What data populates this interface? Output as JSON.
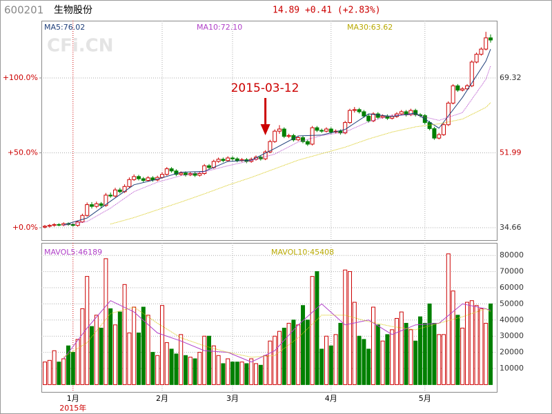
{
  "header": {
    "code": "600201",
    "name": "生物股份",
    "quote": "14.89 +0.41 (+2.83%)"
  },
  "chart_data": [
    {
      "type": "candlestick",
      "watermark": "CFi.CN",
      "annotation": "2015-03-12",
      "year_label": "2015年",
      "grid": true,
      "categories": [
        null,
        null,
        null,
        null,
        null,
        null,
        "1月",
        null,
        null,
        null,
        null,
        null,
        null,
        null,
        null,
        null,
        null,
        null,
        null,
        null,
        null,
        null,
        null,
        null,
        null,
        "2月",
        null,
        null,
        null,
        null,
        null,
        null,
        null,
        null,
        null,
        null,
        null,
        null,
        null,
        null,
        "3月",
        null,
        null,
        null,
        null,
        null,
        null,
        null,
        null,
        null,
        null,
        null,
        null,
        null,
        null,
        null,
        null,
        null,
        null,
        null,
        null,
        "4月",
        null,
        null,
        null,
        null,
        null,
        null,
        null,
        null,
        null,
        null,
        null,
        null,
        null,
        null,
        null,
        null,
        null,
        null,
        null,
        "5月",
        null,
        null,
        null,
        null,
        null,
        null,
        null,
        null,
        null,
        null,
        null,
        null,
        null,
        null
      ],
      "colors": {
        "up": "#cc0000",
        "down": "#008000"
      },
      "ohlc": [
        [
          34.8,
          35.3,
          34.5,
          35.0
        ],
        [
          35.0,
          35.5,
          34.7,
          35.2
        ],
        [
          35.2,
          35.7,
          34.9,
          35.4
        ],
        [
          35.4,
          35.7,
          35.0,
          35.3
        ],
        [
          35.3,
          35.9,
          35.0,
          35.6
        ],
        [
          35.6,
          35.9,
          35.1,
          35.4
        ],
        [
          35.4,
          35.7,
          34.9,
          35.2
        ],
        [
          35.2,
          36.3,
          34.9,
          36.0
        ],
        [
          36.0,
          37.9,
          35.8,
          37.5
        ],
        [
          37.5,
          40.5,
          37.2,
          40.0
        ],
        [
          40.0,
          40.6,
          39.1,
          39.6
        ],
        [
          39.6,
          40.7,
          39.2,
          40.2
        ],
        [
          40.2,
          40.6,
          39.3,
          39.8
        ],
        [
          39.8,
          42.7,
          39.5,
          42.2
        ],
        [
          42.2,
          42.8,
          41.6,
          42.0
        ],
        [
          42.0,
          43.9,
          41.7,
          43.4
        ],
        [
          43.4,
          43.9,
          42.6,
          43.0
        ],
        [
          43.0,
          44.7,
          42.7,
          44.2
        ],
        [
          44.2,
          46.3,
          43.9,
          45.8
        ],
        [
          45.8,
          47.0,
          45.5,
          46.5
        ],
        [
          46.5,
          46.9,
          45.6,
          46.0
        ],
        [
          46.0,
          46.4,
          45.2,
          45.6
        ],
        [
          45.6,
          46.6,
          45.3,
          46.2
        ],
        [
          46.2,
          46.6,
          45.3,
          45.7
        ],
        [
          45.7,
          46.7,
          45.4,
          46.3
        ],
        [
          46.3,
          47.5,
          46.0,
          47.0
        ],
        [
          47.0,
          48.7,
          46.7,
          48.3
        ],
        [
          48.3,
          48.7,
          47.4,
          47.8
        ],
        [
          47.8,
          48.2,
          46.6,
          47.0
        ],
        [
          47.0,
          47.7,
          46.7,
          47.3
        ],
        [
          47.3,
          47.7,
          46.5,
          46.9
        ],
        [
          46.9,
          47.6,
          46.6,
          47.2
        ],
        [
          47.2,
          47.6,
          46.4,
          46.8
        ],
        [
          46.8,
          47.6,
          46.5,
          47.2
        ],
        [
          47.2,
          49.4,
          46.9,
          49.0
        ],
        [
          49.0,
          49.4,
          48.2,
          48.6
        ],
        [
          48.6,
          50.4,
          48.3,
          50.0
        ],
        [
          50.0,
          50.9,
          49.7,
          50.5
        ],
        [
          50.5,
          50.9,
          49.8,
          50.2
        ],
        [
          50.2,
          51.2,
          49.9,
          50.8
        ],
        [
          50.8,
          51.2,
          50.2,
          50.6
        ],
        [
          50.6,
          51.0,
          49.8,
          50.2
        ],
        [
          50.2,
          50.8,
          49.9,
          50.4
        ],
        [
          50.4,
          50.8,
          49.6,
          50.0
        ],
        [
          50.0,
          50.9,
          49.7,
          50.5
        ],
        [
          50.5,
          51.4,
          50.2,
          51.0
        ],
        [
          51.0,
          51.4,
          50.2,
          50.6
        ],
        [
          50.6,
          52.6,
          50.3,
          52.2
        ],
        [
          52.2,
          55.0,
          51.9,
          54.6
        ],
        [
          54.6,
          57.4,
          54.3,
          57.0
        ],
        [
          57.0,
          58.4,
          56.4,
          57.5
        ],
        [
          57.5,
          57.9,
          55.4,
          55.8
        ],
        [
          55.8,
          56.4,
          55.4,
          56.0
        ],
        [
          56.0,
          56.4,
          54.6,
          55.0
        ],
        [
          55.0,
          55.9,
          54.7,
          55.5
        ],
        [
          55.5,
          55.9,
          54.2,
          54.6
        ],
        [
          54.6,
          55.0,
          53.6,
          54.0
        ],
        [
          54.0,
          58.2,
          53.7,
          57.8
        ],
        [
          57.8,
          58.2,
          56.8,
          57.2
        ],
        [
          57.2,
          57.6,
          56.6,
          57.0
        ],
        [
          57.0,
          57.9,
          56.7,
          57.5
        ],
        [
          57.5,
          57.9,
          56.4,
          56.8
        ],
        [
          56.8,
          57.4,
          56.5,
          57.0
        ],
        [
          57.0,
          57.4,
          56.2,
          56.6
        ],
        [
          56.6,
          59.4,
          56.3,
          59.0
        ],
        [
          59.0,
          62.2,
          58.7,
          61.8
        ],
        [
          61.8,
          62.6,
          61.3,
          62.0
        ],
        [
          62.0,
          62.4,
          61.1,
          61.5
        ],
        [
          61.5,
          61.9,
          60.1,
          60.5
        ],
        [
          60.5,
          60.9,
          59.0,
          59.4
        ],
        [
          59.4,
          61.4,
          59.1,
          61.0
        ],
        [
          61.0,
          61.4,
          59.8,
          60.2
        ],
        [
          60.2,
          60.9,
          59.9,
          60.5
        ],
        [
          60.5,
          60.9,
          59.6,
          60.0
        ],
        [
          60.0,
          60.8,
          59.7,
          60.4
        ],
        [
          60.4,
          61.4,
          60.1,
          61.0
        ],
        [
          61.0,
          61.9,
          60.7,
          61.5
        ],
        [
          61.5,
          61.9,
          60.4,
          60.8
        ],
        [
          60.8,
          62.2,
          60.5,
          61.8
        ],
        [
          61.8,
          62.2,
          60.4,
          60.8
        ],
        [
          60.8,
          61.2,
          60.2,
          60.6
        ],
        [
          60.6,
          61.0,
          58.6,
          59.0
        ],
        [
          59.0,
          59.4,
          57.2,
          57.6
        ],
        [
          57.6,
          58.0,
          55.0,
          55.4
        ],
        [
          55.4,
          56.6,
          55.1,
          56.2
        ],
        [
          56.2,
          58.9,
          55.9,
          58.5
        ],
        [
          58.5,
          63.9,
          58.2,
          63.5
        ],
        [
          63.5,
          67.9,
          63.2,
          67.5
        ],
        [
          67.5,
          67.9,
          66.1,
          66.5
        ],
        [
          66.5,
          67.2,
          66.2,
          66.8
        ],
        [
          66.8,
          67.9,
          66.5,
          67.5
        ],
        [
          67.5,
          73.4,
          67.2,
          73.0
        ],
        [
          73.0,
          75.2,
          72.7,
          74.8
        ],
        [
          74.8,
          76.4,
          74.5,
          76.0
        ],
        [
          76.0,
          80.0,
          75.7,
          78.6
        ],
        [
          78.6,
          79.4,
          77.5,
          78.1
        ]
      ],
      "ylim": [
        31.79,
        82.57
      ],
      "yticks": [
        34.66,
        51.99,
        69.32
      ],
      "yticks_left": [
        {
          "value": 34.66,
          "label": "+0.0%"
        },
        {
          "value": 51.99,
          "label": "+50.0%"
        },
        {
          "value": 69.32,
          "label": "+100.0%"
        }
      ],
      "series": [
        {
          "name": "MA5:76.02",
          "color": "#1f3f7a",
          "x": [
            4,
            9,
            14,
            19,
            24,
            29,
            34,
            39,
            44,
            49,
            54,
            59,
            64,
            69,
            74,
            79,
            84,
            89,
            94,
            95
          ],
          "values": [
            35.3,
            36.9,
            40.8,
            44.6,
            45.9,
            47.5,
            47.7,
            50.0,
            50.3,
            53.0,
            55.9,
            56.1,
            57.4,
            61.0,
            60.4,
            61.2,
            57.7,
            64.8,
            73.2,
            76.0
          ]
        },
        {
          "name": "MA10:72.10",
          "color": "#b040c8",
          "x": [
            4,
            9,
            14,
            19,
            24,
            29,
            34,
            39,
            44,
            49,
            54,
            59,
            64,
            69,
            74,
            79,
            84,
            89,
            94,
            95
          ],
          "values": [
            35.2,
            36.1,
            39.2,
            43.0,
            45.2,
            46.7,
            47.6,
            49.0,
            50.2,
            51.7,
            54.5,
            56.0,
            56.8,
            59.2,
            60.7,
            60.8,
            59.5,
            61.3,
            69.0,
            72.1
          ]
        },
        {
          "name": "MA30:63.62",
          "color": "#d4c400",
          "x": [
            14,
            19,
            24,
            29,
            34,
            39,
            44,
            49,
            54,
            59,
            64,
            69,
            74,
            79,
            84,
            89,
            94,
            95
          ],
          "values": [
            35.5,
            37.0,
            38.8,
            40.6,
            42.5,
            44.5,
            46.3,
            48.3,
            50.3,
            51.8,
            53.3,
            55.2,
            56.8,
            58.0,
            58.7,
            59.8,
            62.5,
            63.6
          ]
        }
      ]
    },
    {
      "type": "bar",
      "values": [
        14000,
        15000,
        21000,
        14000,
        16000,
        24000,
        20000,
        28000,
        47000,
        67000,
        36000,
        43000,
        35000,
        78000,
        47000,
        37000,
        45000,
        62000,
        32000,
        48000,
        32000,
        48000,
        43000,
        20000,
        18000,
        49000,
        26000,
        22000,
        19000,
        31000,
        18000,
        17000,
        16000,
        20000,
        30000,
        30000,
        24000,
        18000,
        13000,
        16000,
        14000,
        14000,
        14000,
        13000,
        16000,
        13000,
        12000,
        18000,
        27000,
        30000,
        33000,
        35000,
        38000,
        40000,
        37000,
        49000,
        40000,
        67000,
        70000,
        22000,
        30000,
        24000,
        31000,
        38000,
        71000,
        70000,
        51000,
        30000,
        28000,
        22000,
        48000,
        37000,
        27000,
        31000,
        34000,
        41000,
        45000,
        38000,
        34000,
        27000,
        42000,
        38000,
        50000,
        38000,
        31000,
        31000,
        81000,
        58000,
        43000,
        35000,
        51000,
        52000,
        49000,
        47000,
        38000,
        50000
      ],
      "ylim": [
        -4530,
        87780
      ],
      "yticks": [
        10000,
        20000,
        30000,
        40000,
        50000,
        60000,
        70000,
        80000
      ],
      "series": [
        {
          "name": "MAVOL5:46189",
          "color": "#b040c8",
          "x": [
            4,
            9,
            14,
            19,
            24,
            29,
            34,
            39,
            44,
            49,
            54,
            59,
            64,
            69,
            74,
            79,
            84,
            89,
            94,
            95
          ],
          "values": [
            16000,
            35000,
            52000,
            45000,
            32000,
            27000,
            21000,
            20000,
            14000,
            21000,
            37000,
            50000,
            37000,
            40000,
            31000,
            37000,
            38000,
            50000,
            47000,
            46000
          ]
        },
        {
          "name": "MAVOL10:45408",
          "color": "#d4c400",
          "x": [
            4,
            9,
            14,
            19,
            24,
            29,
            34,
            39,
            44,
            49,
            54,
            59,
            64,
            69,
            74,
            79,
            84,
            89,
            94,
            95
          ],
          "values": [
            17000,
            26000,
            44000,
            48000,
            38000,
            29000,
            24000,
            20000,
            17000,
            18000,
            29000,
            43000,
            43000,
            39000,
            36000,
            34000,
            38000,
            42000,
            47000,
            45000
          ]
        }
      ]
    }
  ]
}
